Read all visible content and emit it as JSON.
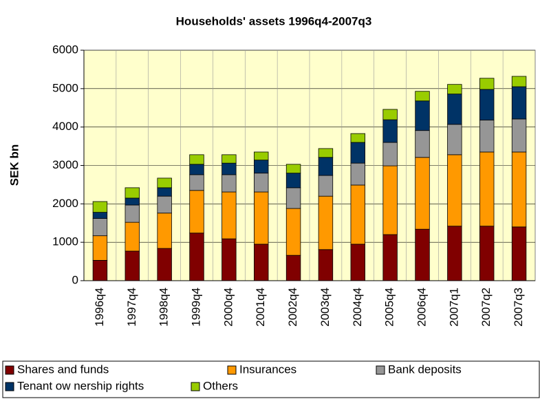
{
  "chart_data": {
    "type": "stacked_bar",
    "title": "Households' assets 1996q4-2007q3",
    "y_label": "SEK bn",
    "categories": [
      "1996q4",
      "1997q4",
      "1998q4",
      "1999q4",
      "2000q4",
      "2001q4",
      "2002q4",
      "2003q4",
      "2004q4",
      "2005q4",
      "2006q4",
      "2007q1",
      "2007q2",
      "2007q3"
    ],
    "series": [
      {
        "name": "Shares and funds",
        "color": "#800000",
        "values": [
          530,
          770,
          840,
          1240,
          1090,
          950,
          660,
          810,
          950,
          1200,
          1340,
          1420,
          1420,
          1400
        ]
      },
      {
        "name": "Insurances",
        "color": "#FF9900",
        "values": [
          640,
          750,
          920,
          1110,
          1220,
          1360,
          1220,
          1390,
          1540,
          1790,
          1870,
          1860,
          1930,
          1950
        ]
      },
      {
        "name": "Bank deposits",
        "color": "#969696",
        "values": [
          450,
          450,
          440,
          410,
          450,
          490,
          540,
          540,
          570,
          610,
          700,
          790,
          830,
          860
        ]
      },
      {
        "name": "Tenant ow nership rights",
        "color": "#003366",
        "values": [
          160,
          180,
          220,
          270,
          300,
          340,
          380,
          470,
          540,
          590,
          770,
          790,
          800,
          840
        ]
      },
      {
        "name": "Others",
        "color": "#99CC00",
        "values": [
          280,
          270,
          250,
          250,
          220,
          210,
          230,
          230,
          230,
          270,
          250,
          250,
          290,
          270
        ]
      }
    ],
    "ylim": [
      0,
      6000
    ],
    "yticks": [
      0,
      1000,
      2000,
      3000,
      4000,
      5000,
      6000
    ],
    "grid": true
  }
}
